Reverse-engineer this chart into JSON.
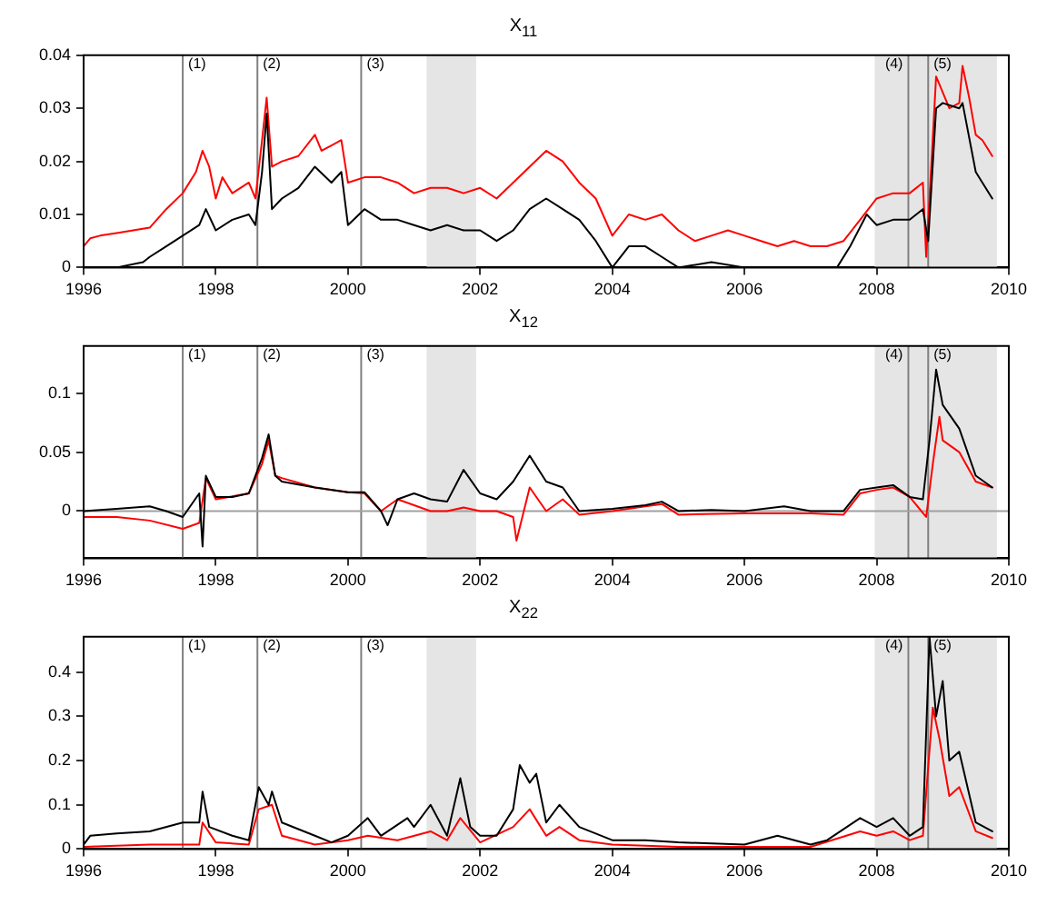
{
  "chart_data": [
    {
      "type": "line",
      "title": "X$_{11}$",
      "xlim": [
        1996,
        2010
      ],
      "xticks": [
        1996,
        1998,
        2000,
        2002,
        2004,
        2006,
        2008,
        2010
      ],
      "ylim": [
        0,
        0.04
      ],
      "yticks": [
        0,
        0.01,
        0.02,
        0.03,
        0.04
      ],
      "grid": false,
      "legend": false,
      "marker": "none",
      "series": [
        {
          "color": "#000000",
          "x": [
            1996.0,
            1996.5,
            1996.9,
            1997.0,
            1997.25,
            1997.5,
            1997.75,
            1997.85,
            1998.0,
            1998.25,
            1998.5,
            1998.6,
            1998.7,
            1998.77,
            1998.85,
            1999.0,
            1999.25,
            1999.5,
            1999.75,
            1999.9,
            2000.0,
            2000.25,
            2000.5,
            2000.75,
            2001.0,
            2001.25,
            2001.5,
            2001.75,
            2002.0,
            2002.25,
            2002.5,
            2002.75,
            2003.0,
            2003.25,
            2003.5,
            2003.75,
            2004.0,
            2004.25,
            2004.5,
            2004.75,
            2005.0,
            2005.5,
            2006.0,
            2006.5,
            2007.0,
            2007.4,
            2007.6,
            2007.85,
            2008.0,
            2008.25,
            2008.5,
            2008.7,
            2008.78,
            2008.9,
            2009.0,
            2009.25,
            2009.3,
            2009.5,
            2009.6,
            2009.75
          ],
          "values": [
            0,
            0,
            0.001,
            0.002,
            0.004,
            0.006,
            0.008,
            0.011,
            0.007,
            0.009,
            0.01,
            0.008,
            0.018,
            0.029,
            0.011,
            0.013,
            0.015,
            0.019,
            0.016,
            0.018,
            0.008,
            0.011,
            0.009,
            0.009,
            0.008,
            0.007,
            0.008,
            0.007,
            0.007,
            0.005,
            0.007,
            0.011,
            0.013,
            0.011,
            0.009,
            0.005,
            0,
            0.004,
            0.004,
            0.002,
            0,
            0.001,
            0,
            0,
            0,
            0,
            0.004,
            0.01,
            0.008,
            0.009,
            0.009,
            0.011,
            0.005,
            0.03,
            0.031,
            0.03,
            0.031,
            0.018,
            0.016,
            0.013
          ]
        },
        {
          "color": "#ff0000",
          "x": [
            1996.0,
            1996.1,
            1996.25,
            1996.5,
            1996.75,
            1997.0,
            1997.25,
            1997.5,
            1997.7,
            1997.8,
            1997.9,
            1998.0,
            1998.1,
            1998.25,
            1998.5,
            1998.6,
            1998.7,
            1998.77,
            1998.85,
            1999.0,
            1999.25,
            1999.5,
            1999.6,
            1999.75,
            1999.9,
            2000.0,
            2000.25,
            2000.5,
            2000.75,
            2001.0,
            2001.25,
            2001.5,
            2001.75,
            2002.0,
            2002.25,
            2002.5,
            2002.75,
            2003.0,
            2003.25,
            2003.5,
            2003.75,
            2004.0,
            2004.25,
            2004.5,
            2004.75,
            2005.0,
            2005.25,
            2005.5,
            2005.75,
            2006.0,
            2006.25,
            2006.5,
            2006.75,
            2007.0,
            2007.25,
            2007.5,
            2007.75,
            2008.0,
            2008.25,
            2008.5,
            2008.7,
            2008.75,
            2008.8,
            2008.9,
            2009.0,
            2009.1,
            2009.25,
            2009.3,
            2009.4,
            2009.5,
            2009.6,
            2009.75
          ],
          "values": [
            0.004,
            0.0055,
            0.006,
            0.0065,
            0.007,
            0.0075,
            0.011,
            0.014,
            0.018,
            0.022,
            0.019,
            0.013,
            0.017,
            0.014,
            0.016,
            0.013,
            0.024,
            0.032,
            0.019,
            0.02,
            0.021,
            0.025,
            0.022,
            0.023,
            0.024,
            0.016,
            0.017,
            0.017,
            0.016,
            0.014,
            0.015,
            0.015,
            0.014,
            0.015,
            0.013,
            0.016,
            0.019,
            0.022,
            0.02,
            0.016,
            0.013,
            0.006,
            0.01,
            0.009,
            0.01,
            0.007,
            0.005,
            0.006,
            0.007,
            0.006,
            0.005,
            0.004,
            0.005,
            0.004,
            0.004,
            0.005,
            0.009,
            0.013,
            0.014,
            0.014,
            0.016,
            0.002,
            0.013,
            0.036,
            0.033,
            0.03,
            0.031,
            0.038,
            0.032,
            0.025,
            0.024,
            0.021
          ]
        }
      ],
      "annotations": [
        {
          "text": "(1)",
          "x": 1997.5
        },
        {
          "text": "(2)",
          "x": 1998.63
        },
        {
          "text": "(3)",
          "x": 2000.2
        },
        {
          "text": "(4)",
          "x": 2008.48
        },
        {
          "text": "(5)",
          "x": 2008.78
        }
      ],
      "ref_lines": [
        {
          "axis": "x",
          "value": 1997.5,
          "color": "#808080"
        },
        {
          "axis": "x",
          "value": 1998.63,
          "color": "#808080"
        },
        {
          "axis": "x",
          "value": 2000.2,
          "color": "#808080"
        },
        {
          "axis": "x",
          "value": 2008.48,
          "color": "#808080"
        },
        {
          "axis": "x",
          "value": 2008.78,
          "color": "#808080"
        }
      ],
      "bands": [
        {
          "axis": "x",
          "from": 2001.19,
          "to": 2001.94,
          "color": "#e5e5e5"
        },
        {
          "axis": "x",
          "from": 2007.97,
          "to": 2009.82,
          "color": "#e5e5e5"
        }
      ]
    },
    {
      "type": "line",
      "title": "X$_{12}$",
      "xlim": [
        1996,
        2010
      ],
      "xticks": [
        1996,
        1998,
        2000,
        2002,
        2004,
        2006,
        2008,
        2010
      ],
      "ylim": [
        -0.04,
        0.14
      ],
      "yticks": [
        0,
        0.05,
        0.1
      ],
      "grid": false,
      "legend": false,
      "marker": "none",
      "series": [
        {
          "color": "#000000",
          "x": [
            1996,
            1996.5,
            1997.0,
            1997.25,
            1997.5,
            1997.75,
            1997.8,
            1997.85,
            1998.0,
            1998.25,
            1998.5,
            1998.7,
            1998.8,
            1998.9,
            1999.0,
            1999.5,
            2000.0,
            2000.25,
            2000.5,
            2000.6,
            2000.75,
            2001.0,
            2001.25,
            2001.5,
            2001.75,
            2002.0,
            2002.25,
            2002.5,
            2002.75,
            2003.0,
            2003.25,
            2003.5,
            2004.0,
            2004.5,
            2004.75,
            2005.0,
            2005.5,
            2006.0,
            2006.6,
            2007.0,
            2007.5,
            2007.75,
            2008.0,
            2008.25,
            2008.5,
            2008.7,
            2008.8,
            2008.9,
            2009.0,
            2009.25,
            2009.5,
            2009.75
          ],
          "values": [
            0,
            0.002,
            0.004,
            0,
            -0.005,
            0.015,
            -0.03,
            0.03,
            0.012,
            0.012,
            0.015,
            0.045,
            0.065,
            0.03,
            0.025,
            0.02,
            0.016,
            0.016,
            0,
            -0.012,
            0.01,
            0.015,
            0.01,
            0.008,
            0.035,
            0.015,
            0.01,
            0.025,
            0.047,
            0.025,
            0.02,
            0,
            0.002,
            0.005,
            0.008,
            0,
            0.001,
            0,
            0.004,
            0,
            0,
            0.018,
            0.02,
            0.022,
            0.012,
            0.01,
            0.06,
            0.12,
            0.09,
            0.07,
            0.03,
            0.02
          ]
        },
        {
          "color": "#ff0000",
          "x": [
            1996,
            1996.5,
            1997.0,
            1997.5,
            1997.75,
            1997.85,
            1998.0,
            1998.5,
            1998.7,
            1998.8,
            1998.9,
            1999.0,
            1999.5,
            2000.0,
            2000.25,
            2000.5,
            2000.75,
            2001.0,
            2001.25,
            2001.5,
            2001.75,
            2002.0,
            2002.25,
            2002.5,
            2002.55,
            2002.75,
            2003.0,
            2003.25,
            2003.5,
            2004.0,
            2004.5,
            2004.75,
            2005.0,
            2006.0,
            2007.0,
            2007.5,
            2007.75,
            2008.0,
            2008.25,
            2008.5,
            2008.75,
            2008.85,
            2008.95,
            2009.0,
            2009.25,
            2009.5,
            2009.75
          ],
          "values": [
            -0.005,
            -0.005,
            -0.008,
            -0.015,
            -0.01,
            0.028,
            0.01,
            0.015,
            0.04,
            0.06,
            0.03,
            0.028,
            0.02,
            0.016,
            0.015,
            0,
            0.01,
            0.005,
            0,
            0,
            0.003,
            0,
            0,
            -0.005,
            -0.025,
            0.02,
            0,
            0.01,
            -0.003,
            0,
            0.004,
            0.006,
            -0.003,
            -0.002,
            -0.002,
            -0.003,
            0.015,
            0.018,
            0.02,
            0.012,
            -0.005,
            0.04,
            0.08,
            0.06,
            0.05,
            0.025,
            0.02
          ]
        }
      ],
      "annotations": [
        {
          "text": "(1)",
          "x": 1997.5
        },
        {
          "text": "(2)",
          "x": 1998.63
        },
        {
          "text": "(3)",
          "x": 2000.2
        },
        {
          "text": "(4)",
          "x": 2008.48
        },
        {
          "text": "(5)",
          "x": 2008.78
        }
      ],
      "ref_lines": [
        {
          "axis": "x",
          "value": 1997.5,
          "color": "#808080"
        },
        {
          "axis": "x",
          "value": 1998.63,
          "color": "#808080"
        },
        {
          "axis": "x",
          "value": 2000.2,
          "color": "#808080"
        },
        {
          "axis": "x",
          "value": 2008.48,
          "color": "#808080"
        },
        {
          "axis": "x",
          "value": 2008.78,
          "color": "#808080"
        },
        {
          "axis": "y",
          "value": 0,
          "color": "#a0a0a0"
        }
      ],
      "bands": [
        {
          "axis": "x",
          "from": 2001.19,
          "to": 2001.94,
          "color": "#e5e5e5"
        },
        {
          "axis": "x",
          "from": 2007.97,
          "to": 2009.82,
          "color": "#e5e5e5"
        }
      ]
    },
    {
      "type": "line",
      "title": "X$_{22}$",
      "xlim": [
        1996,
        2010
      ],
      "xticks": [
        1996,
        1998,
        2000,
        2002,
        2004,
        2006,
        2008,
        2010
      ],
      "ylim": [
        0,
        0.48
      ],
      "yticks": [
        0,
        0.1,
        0.2,
        0.3,
        0.4
      ],
      "grid": false,
      "legend": false,
      "marker": "none",
      "series": [
        {
          "color": "#000000",
          "x": [
            1996,
            1996.1,
            1996.5,
            1997,
            1997.5,
            1997.75,
            1997.8,
            1997.9,
            1998.25,
            1998.5,
            1998.65,
            1998.8,
            1998.85,
            1999.0,
            1999.5,
            1999.75,
            2000.0,
            2000.3,
            2000.5,
            2000.9,
            2001.0,
            2001.25,
            2001.5,
            2001.7,
            2001.85,
            2002.0,
            2002.25,
            2002.5,
            2002.6,
            2002.75,
            2002.85,
            2003.0,
            2003.2,
            2003.5,
            2004.0,
            2004.5,
            2005.0,
            2006.0,
            2006.5,
            2007.0,
            2007.25,
            2007.75,
            2008.0,
            2008.25,
            2008.5,
            2008.7,
            2008.8,
            2008.9,
            2009.0,
            2009.1,
            2009.25,
            2009.5,
            2009.75
          ],
          "values": [
            0.01,
            0.03,
            0.035,
            0.04,
            0.06,
            0.06,
            0.13,
            0.05,
            0.03,
            0.02,
            0.14,
            0.1,
            0.13,
            0.06,
            0.03,
            0.015,
            0.03,
            0.07,
            0.03,
            0.07,
            0.05,
            0.1,
            0.03,
            0.16,
            0.05,
            0.03,
            0.03,
            0.09,
            0.19,
            0.15,
            0.17,
            0.06,
            0.1,
            0.05,
            0.02,
            0.02,
            0.015,
            0.01,
            0.03,
            0.01,
            0.02,
            0.07,
            0.05,
            0.07,
            0.03,
            0.05,
            0.48,
            0.3,
            0.38,
            0.2,
            0.22,
            0.06,
            0.04
          ]
        },
        {
          "color": "#ff0000",
          "x": [
            1996,
            1997,
            1997.75,
            1997.8,
            1998.0,
            1998.5,
            1998.65,
            1998.85,
            1999.0,
            1999.5,
            2000,
            2000.3,
            2000.75,
            2001.25,
            2001.5,
            2001.7,
            2002,
            2002.5,
            2002.75,
            2003.0,
            2003.2,
            2003.5,
            2004,
            2005,
            2006,
            2007,
            2007.75,
            2008,
            2008.25,
            2008.5,
            2008.7,
            2008.85,
            2008.95,
            2009.1,
            2009.25,
            2009.5,
            2009.75
          ],
          "values": [
            0.005,
            0.01,
            0.01,
            0.06,
            0.015,
            0.01,
            0.09,
            0.1,
            0.03,
            0.01,
            0.02,
            0.03,
            0.02,
            0.04,
            0.02,
            0.07,
            0.015,
            0.05,
            0.09,
            0.03,
            0.05,
            0.02,
            0.01,
            0.005,
            0.005,
            0.005,
            0.04,
            0.03,
            0.04,
            0.02,
            0.03,
            0.32,
            0.25,
            0.12,
            0.14,
            0.04,
            0.025
          ]
        }
      ],
      "annotations": [
        {
          "text": "(1)",
          "x": 1997.5
        },
        {
          "text": "(2)",
          "x": 1998.63
        },
        {
          "text": "(3)",
          "x": 2000.2
        },
        {
          "text": "(4)",
          "x": 2008.48
        },
        {
          "text": "(5)",
          "x": 2008.78
        }
      ],
      "ref_lines": [
        {
          "axis": "x",
          "value": 1997.5,
          "color": "#808080"
        },
        {
          "axis": "x",
          "value": 1998.63,
          "color": "#808080"
        },
        {
          "axis": "x",
          "value": 2000.2,
          "color": "#808080"
        },
        {
          "axis": "x",
          "value": 2008.48,
          "color": "#808080"
        },
        {
          "axis": "x",
          "value": 2008.78,
          "color": "#808080"
        }
      ],
      "bands": [
        {
          "axis": "x",
          "from": 2001.19,
          "to": 2001.94,
          "color": "#e5e5e5"
        },
        {
          "axis": "x",
          "from": 2007.97,
          "to": 2009.82,
          "color": "#e5e5e5"
        }
      ]
    }
  ]
}
